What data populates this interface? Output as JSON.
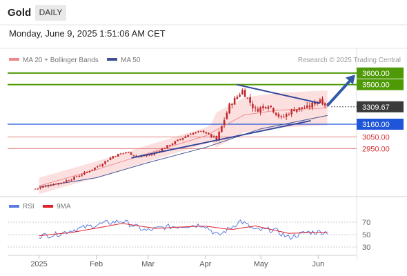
{
  "header": {
    "instrument": "Gold",
    "timeframe": "DAILY",
    "timestamp": "Monday, June 9, 2025 1:51:06 AM CET"
  },
  "legend": {
    "ma20_label": "MA 20 + Bollinger Bands",
    "ma50_label": "MA 50",
    "credit": "Research © 2025 Trading Central"
  },
  "rsi_legend": {
    "rsi_label": "RSI",
    "ma9_label": "9MA"
  },
  "colors": {
    "candle": "#c0282c",
    "ma20": "#f08a8a",
    "band_fill": "#fbd6d6",
    "ma50": "#41508f",
    "target": "#4e9a06",
    "pivot": "#1f55d8",
    "support": "#e07a7a",
    "trendline": "#34479a",
    "rsi": "#5a7be0",
    "ma9": "#e0202c",
    "grid": "#c9c9c9"
  },
  "chart_data": [
    {
      "type": "candlestick",
      "title": "Gold",
      "x_ticks": [
        "2025",
        "Feb",
        "Mar",
        "Apr",
        "May",
        "Jun"
      ],
      "ylim": [
        2550,
        3720
      ],
      "grid": false,
      "legend_position": "top-left",
      "price_series": [
        [
          "2024-12-30",
          2604
        ],
        [
          "2025-01-06",
          2636
        ],
        [
          "2025-01-13",
          2660
        ],
        [
          "2025-01-20",
          2700
        ],
        [
          "2025-01-27",
          2750
        ],
        [
          "2025-02-03",
          2810
        ],
        [
          "2025-02-10",
          2885
        ],
        [
          "2025-02-17",
          2920
        ],
        [
          "2025-02-24",
          2880
        ],
        [
          "2025-03-03",
          2900
        ],
        [
          "2025-03-10",
          2960
        ],
        [
          "2025-03-17",
          3020
        ],
        [
          "2025-03-24",
          3080
        ],
        [
          "2025-03-31",
          3100
        ],
        [
          "2025-04-07",
          3020
        ],
        [
          "2025-04-14",
          3320
        ],
        [
          "2025-04-21",
          3450
        ],
        [
          "2025-04-28",
          3280
        ],
        [
          "2025-05-05",
          3330
        ],
        [
          "2025-05-12",
          3210
        ],
        [
          "2025-05-19",
          3290
        ],
        [
          "2025-05-26",
          3300
        ],
        [
          "2025-06-02",
          3375
        ],
        [
          "2025-06-06",
          3309.67
        ]
      ],
      "ma20_series": [
        [
          "2025-01-01",
          2630
        ],
        [
          "2025-02-01",
          2770
        ],
        [
          "2025-03-01",
          2910
        ],
        [
          "2025-04-01",
          3060
        ],
        [
          "2025-04-22",
          3240
        ],
        [
          "2025-05-10",
          3280
        ],
        [
          "2025-06-06",
          3300
        ]
      ],
      "ma50_series": [
        [
          "2025-01-01",
          2620
        ],
        [
          "2025-02-01",
          2700
        ],
        [
          "2025-03-01",
          2830
        ],
        [
          "2025-04-01",
          2960
        ],
        [
          "2025-05-01",
          3120
        ],
        [
          "2025-06-06",
          3235
        ]
      ],
      "trendlines": [
        {
          "from": [
            "2025-04-18",
            3500
          ],
          "to": [
            "2025-06-02",
            3340
          ]
        },
        {
          "from": [
            "2025-02-20",
            2870
          ],
          "to": [
            "2025-05-28",
            3190
          ]
        }
      ],
      "forecast_arrow": {
        "from": [
          "2025-06-06",
          3320
        ],
        "to": [
          "2025-06-21",
          3585
        ]
      },
      "levels": [
        {
          "value": "3600.00",
          "kind": "target"
        },
        {
          "value": "3500.00",
          "kind": "target"
        },
        {
          "value": "3309.67",
          "kind": "last"
        },
        {
          "value": "3160.00",
          "kind": "pivot"
        },
        {
          "value": "3050.00",
          "kind": "support"
        },
        {
          "value": "2950.00",
          "kind": "support"
        }
      ]
    },
    {
      "type": "line",
      "title": "RSI",
      "y_ticks": [
        "70",
        "50",
        "30"
      ],
      "ylim": [
        20,
        80
      ],
      "series": [
        {
          "name": "RSI",
          "values": [
            [
              "2025-01-01",
              48
            ],
            [
              "2025-01-10",
              50
            ],
            [
              "2025-01-20",
              58
            ],
            [
              "2025-02-05",
              68
            ],
            [
              "2025-02-15",
              72
            ],
            [
              "2025-02-28",
              56
            ],
            [
              "2025-03-10",
              62
            ],
            [
              "2025-03-20",
              64
            ],
            [
              "2025-03-31",
              66
            ],
            [
              "2025-04-08",
              48
            ],
            [
              "2025-04-20",
              72
            ],
            [
              "2025-04-28",
              57
            ],
            [
              "2025-05-08",
              58
            ],
            [
              "2025-05-16",
              45
            ],
            [
              "2025-05-26",
              54
            ],
            [
              "2025-06-06",
              54
            ]
          ]
        },
        {
          "name": "9MA",
          "values": [
            [
              "2025-01-01",
              48
            ],
            [
              "2025-01-20",
              54
            ],
            [
              "2025-02-15",
              68
            ],
            [
              "2025-03-05",
              60
            ],
            [
              "2025-03-31",
              64
            ],
            [
              "2025-04-15",
              58
            ],
            [
              "2025-04-28",
              64
            ],
            [
              "2025-05-16",
              52
            ],
            [
              "2025-06-06",
              54
            ]
          ]
        }
      ]
    }
  ]
}
